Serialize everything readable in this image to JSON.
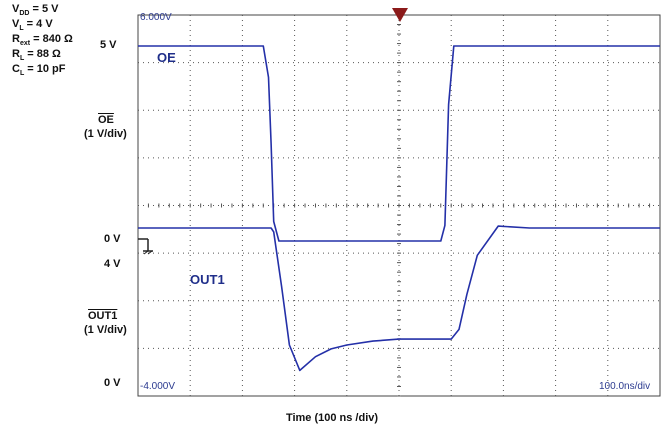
{
  "conditions": [
    {
      "main": "V",
      "sub": "DD",
      "rest": " = 5 V"
    },
    {
      "main": "V",
      "sub": "L",
      "rest": " = 4 V"
    },
    {
      "main": "R",
      "sub": "ext",
      "rest": " = 840 Ω"
    },
    {
      "main": "R",
      "sub": "L",
      "rest": " = 88 Ω"
    },
    {
      "main": "C",
      "sub": "L",
      "rest": " = 10 pF"
    }
  ],
  "ylabels": {
    "oe_5v": "5 V",
    "oe_name": "OE",
    "oe_scale": "(1 V/div)",
    "oe_0v": "0 V",
    "out_4v": "4 V",
    "out_name": "OUT1",
    "out_scale": "(1 V/div)",
    "out_0v": "0 V"
  },
  "signals": {
    "oe": "OE",
    "out": "OUT1"
  },
  "scope": {
    "top_level": "6.000V",
    "bottom_level": "-4.000V",
    "timebase": "100.0ns/div"
  },
  "colors": {
    "trace": "#2430a8",
    "grid": "#555555",
    "trigger": "#8b1a1a"
  },
  "chart_data": {
    "type": "line",
    "xlabel": "Time (100 ns /div)",
    "x_unit": "ns",
    "xlim": [
      -400,
      600
    ],
    "grid": true,
    "series": [
      {
        "name": "OE",
        "volts_per_div": 1,
        "x": [
          -400,
          -160,
          -150,
          -145,
          -140,
          -130,
          -100,
          0,
          100,
          180,
          188,
          195,
          205,
          220,
          600
        ],
        "y": [
          5,
          5,
          4.2,
          2.5,
          0.5,
          0,
          0,
          0,
          0,
          0,
          0.4,
          3.5,
          5,
          5,
          5
        ]
      },
      {
        "name": "OUT1",
        "volts_per_div": 1,
        "x": [
          -400,
          -145,
          -140,
          -125,
          -110,
          -90,
          -60,
          -30,
          0,
          50,
          100,
          200,
          215,
          230,
          250,
          290,
          350,
          600
        ],
        "y": [
          4,
          4,
          3.9,
          2.5,
          1.0,
          0.35,
          0.7,
          0.9,
          1.0,
          1.1,
          1.15,
          1.15,
          1.4,
          2.3,
          3.3,
          4.05,
          4.0,
          4.0
        ]
      }
    ]
  }
}
